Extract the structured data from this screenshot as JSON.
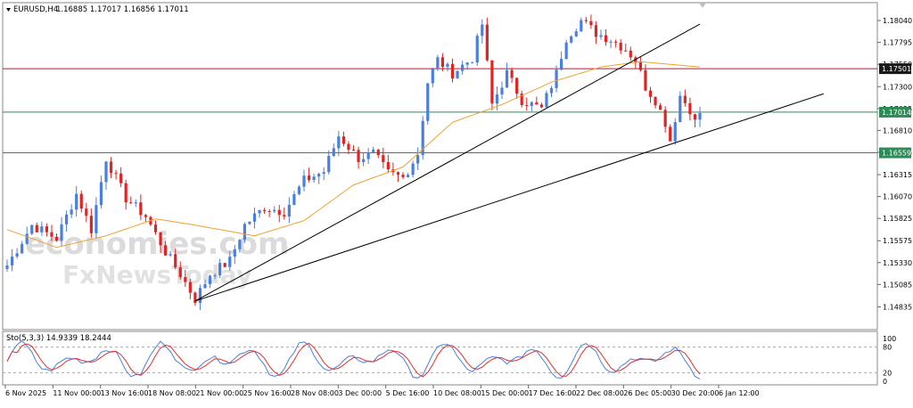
{
  "header": {
    "symbol_label": "EURUSD,H4",
    "ohlc": "1.16885 1.17017 1.16856 1.17011"
  },
  "watermark": {
    "line1": "economies.com",
    "line2": "FxNewsToday"
  },
  "oscillator": {
    "label": "Sto(5,3,3) 14.9339 18.2444",
    "ticks": [
      "100",
      "80",
      "20",
      "0"
    ],
    "levels": [
      80,
      20
    ],
    "colors": {
      "main": "#4a7fe0",
      "signal": "#e03030"
    }
  },
  "colors": {
    "bull": "#4a7fe0",
    "bear": "#e02424",
    "ma": "#f0a030",
    "resistance": "#c8102e",
    "support_green": "#2e8b57",
    "badge_dark": "#1a1a1a"
  },
  "chart_data": {
    "type": "candlestick",
    "instrument": "EURUSD",
    "timeframe": "H4",
    "y_axis": {
      "range": [
        1.146,
        1.1822
      ],
      "ticks": [
        "1.18040",
        "1.17795",
        "1.17550",
        "1.17300",
        "1.17055",
        "1.16810",
        "1.16565",
        "1.16315",
        "1.16070",
        "1.15825",
        "1.15575",
        "1.15330",
        "1.15085",
        "1.14835"
      ]
    },
    "x_axis": {
      "ticks": [
        "6 Nov 2025",
        "11 Nov 00:00",
        "13 Nov 16:00",
        "18 Nov 08:00",
        "21 Nov 00:00",
        "25 Nov 16:00",
        "28 Nov 08:00",
        "3 Dec 00:00",
        "5 Dec 16:00",
        "10 Dec 08:00",
        "15 Dec 00:00",
        "17 Dec 16:00",
        "22 Dec 08:00",
        "26 Dec 05:00",
        "30 Dec 20:00",
        "6 Jan 12:00"
      ]
    },
    "horizontal_levels": [
      {
        "label": "1.17501",
        "value": 1.17501,
        "color": "#c8102e",
        "badge": "dark"
      },
      {
        "label": "1.17014",
        "value": 1.17014,
        "color": "#2e8b57",
        "badge": "green"
      },
      {
        "label": "1.16559",
        "value": 1.16559,
        "color": "#2e8b57",
        "badge": "green"
      }
    ],
    "trendlines": [
      {
        "from": {
          "bar": 38,
          "price": 1.149
        },
        "to": {
          "bar": 140,
          "price": 1.18
        }
      },
      {
        "from": {
          "bar": 38,
          "price": 1.149
        },
        "to": {
          "bar": 165,
          "price": 1.1722
        }
      }
    ],
    "price_path": [
      [
        0,
        1.153
      ],
      [
        5,
        1.1575
      ],
      [
        10,
        1.156
      ],
      [
        14,
        1.161
      ],
      [
        17,
        1.157
      ],
      [
        20,
        1.165
      ],
      [
        24,
        1.1605
      ],
      [
        28,
        1.1585
      ],
      [
        32,
        1.1545
      ],
      [
        35,
        1.152
      ],
      [
        38,
        1.1492
      ],
      [
        41,
        1.152
      ],
      [
        45,
        1.1535
      ],
      [
        48,
        1.1575
      ],
      [
        52,
        1.1595
      ],
      [
        56,
        1.159
      ],
      [
        60,
        1.1625
      ],
      [
        64,
        1.1635
      ],
      [
        67,
        1.1675
      ],
      [
        71,
        1.165
      ],
      [
        74,
        1.1655
      ],
      [
        77,
        1.1633
      ],
      [
        80,
        1.1628
      ],
      [
        83,
        1.1655
      ],
      [
        85,
        1.1735
      ],
      [
        87,
        1.176
      ],
      [
        90,
        1.1745
      ],
      [
        94,
        1.1762
      ],
      [
        96,
        1.18
      ],
      [
        98,
        1.171
      ],
      [
        101,
        1.1745
      ],
      [
        104,
        1.1715
      ],
      [
        108,
        1.1705
      ],
      [
        111,
        1.1745
      ],
      [
        113,
        1.1785
      ],
      [
        116,
        1.1804
      ],
      [
        119,
        1.179
      ],
      [
        122,
        1.1783
      ],
      [
        125,
        1.1772
      ],
      [
        127,
        1.176
      ],
      [
        129,
        1.173
      ],
      [
        131,
        1.1715
      ],
      [
        133,
        1.169
      ],
      [
        134,
        1.167
      ],
      [
        136,
        1.172
      ],
      [
        138,
        1.1705
      ],
      [
        139,
        1.169
      ],
      [
        140,
        1.1701
      ]
    ],
    "moving_average": [
      [
        0,
        1.157
      ],
      [
        10,
        1.155
      ],
      [
        20,
        1.1563
      ],
      [
        30,
        1.1582
      ],
      [
        38,
        1.1575
      ],
      [
        50,
        1.1563
      ],
      [
        60,
        1.158
      ],
      [
        70,
        1.162
      ],
      [
        80,
        1.164
      ],
      [
        90,
        1.169
      ],
      [
        100,
        1.171
      ],
      [
        110,
        1.1735
      ],
      [
        120,
        1.1752
      ],
      [
        128,
        1.1758
      ],
      [
        134,
        1.1755
      ],
      [
        140,
        1.1752
      ]
    ],
    "total_bars": 141
  }
}
